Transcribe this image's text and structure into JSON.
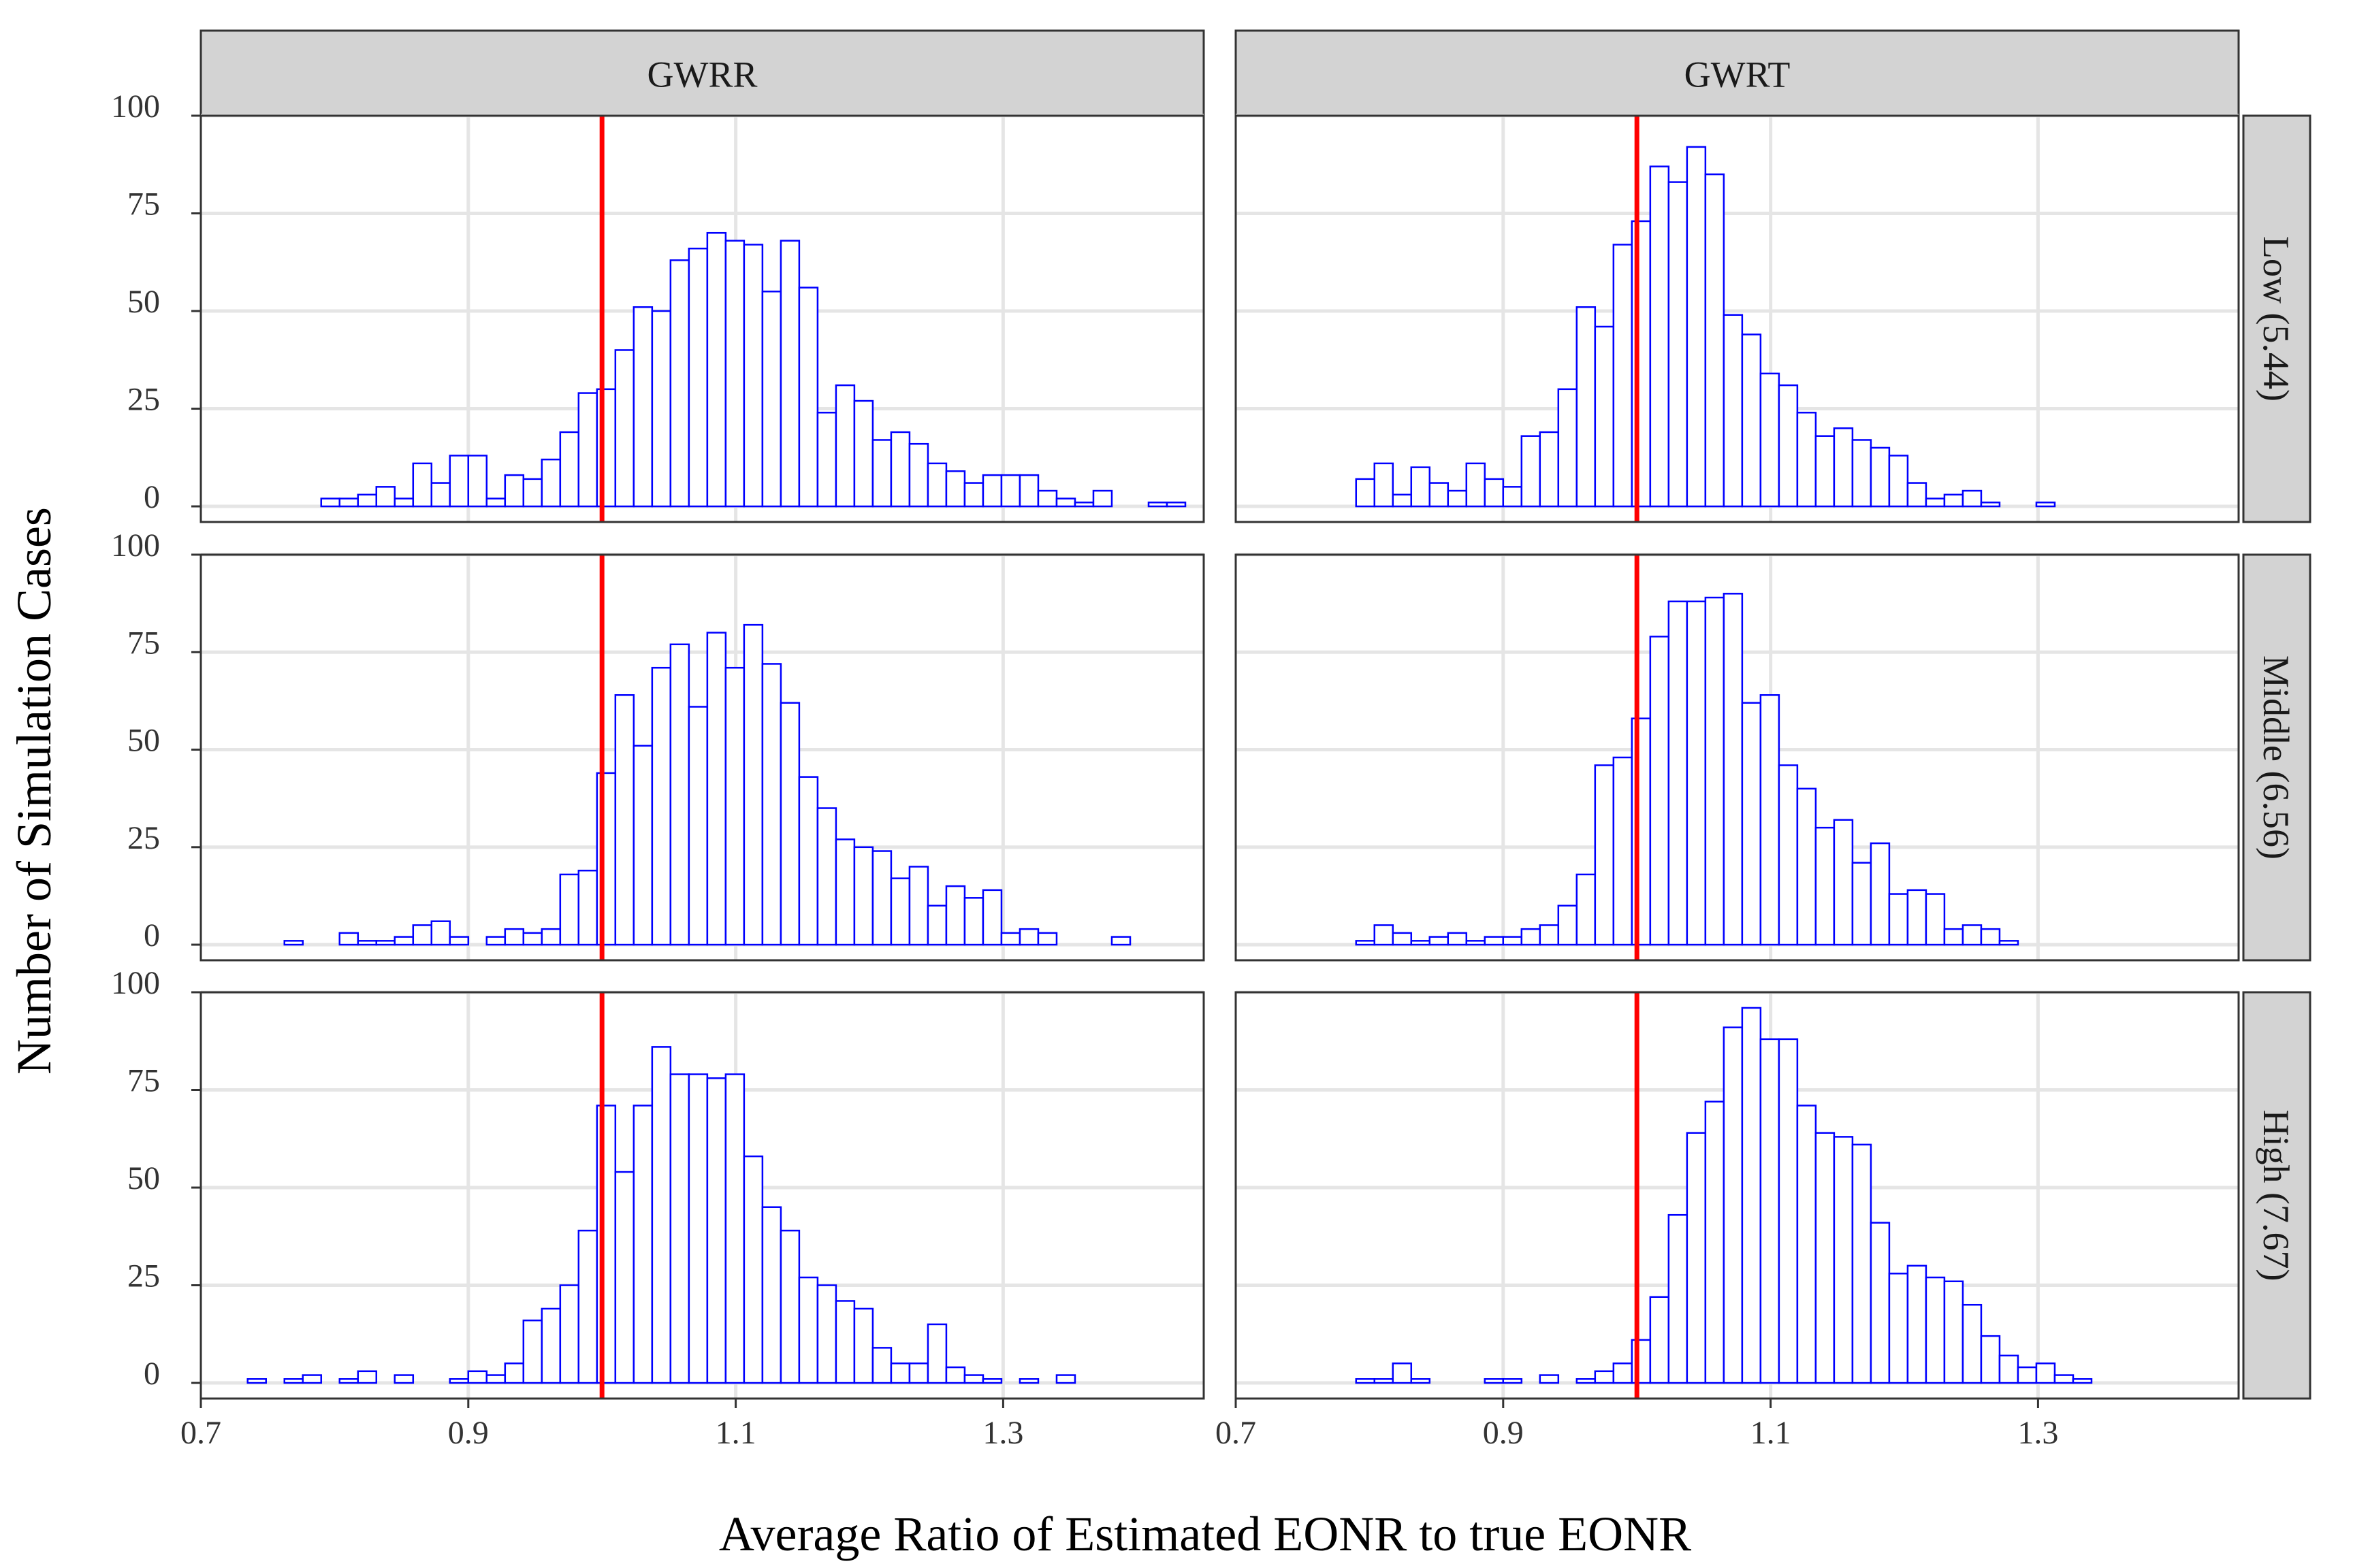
{
  "figure": {
    "ylabel": "Number of Simulation Cases",
    "xlabel": "Average Ratio of Estimated EONR to true EONR",
    "column_headers": [
      "GWRR",
      "GWRT"
    ],
    "row_headers": [
      "Low (5.44)",
      "Middle (6.56)",
      "High (7.67)"
    ],
    "colors": {
      "bar_stroke": "#0000ff",
      "reference_line": "#ff0000",
      "strip_fill": "#d3d3d3",
      "grid": "#e5e5e5",
      "frame": "#333333",
      "text": "#333333"
    }
  },
  "chart_data": {
    "type": "histogram",
    "x_axis": {
      "ticks": [
        "0.7",
        "0.9",
        "1.1",
        "1.3"
      ],
      "range": [
        0.7,
        1.45
      ]
    },
    "y_axis": {
      "ticks": [
        "0",
        "25",
        "50",
        "75",
        "100"
      ],
      "range": [
        -4,
        100
      ]
    },
    "reference_line_x": 1.0,
    "bin_start": 0.735,
    "bin_width": 0.01375,
    "grid": true,
    "panels": [
      {
        "column": "GWRR",
        "row": "Low (5.44)",
        "counts": [
          0,
          0,
          0,
          0,
          2,
          2,
          3,
          5,
          2,
          11,
          6,
          13,
          13,
          2,
          8,
          7,
          12,
          19,
          29,
          30,
          40,
          51,
          50,
          63,
          66,
          70,
          68,
          67,
          55,
          68,
          56,
          24,
          31,
          27,
          17,
          19,
          16,
          11,
          9,
          6,
          8,
          8,
          8,
          4,
          2,
          1,
          4,
          0,
          0,
          1,
          1
        ]
      },
      {
        "column": "GWRT",
        "row": "Low (5.44)",
        "counts": [
          0,
          0,
          0,
          0,
          7,
          11,
          3,
          10,
          6,
          4,
          11,
          7,
          5,
          18,
          19,
          30,
          51,
          46,
          67,
          73,
          87,
          83,
          92,
          85,
          49,
          44,
          34,
          31,
          24,
          18,
          20,
          17,
          15,
          13,
          6,
          2,
          3,
          4,
          1,
          0,
          0,
          1,
          0,
          0,
          0,
          0,
          0,
          0,
          0
        ]
      },
      {
        "column": "GWRR",
        "row": "Middle (6.56)",
        "counts": [
          0,
          0,
          1,
          0,
          0,
          3,
          1,
          1,
          2,
          5,
          6,
          2,
          0,
          2,
          4,
          3,
          4,
          18,
          19,
          44,
          64,
          51,
          71,
          77,
          61,
          80,
          71,
          82,
          72,
          62,
          43,
          35,
          27,
          25,
          24,
          17,
          20,
          10,
          15,
          12,
          14,
          3,
          4,
          3,
          0,
          0,
          0,
          2,
          0,
          0
        ]
      },
      {
        "column": "GWRT",
        "row": "Middle (6.56)",
        "counts": [
          0,
          0,
          0,
          0,
          1,
          5,
          3,
          1,
          2,
          3,
          1,
          2,
          2,
          4,
          5,
          10,
          18,
          46,
          48,
          58,
          79,
          88,
          88,
          89,
          90,
          62,
          64,
          46,
          40,
          30,
          32,
          21,
          26,
          13,
          14,
          13,
          4,
          5,
          4,
          1,
          0,
          0,
          0,
          0,
          0,
          0,
          0,
          0,
          0
        ]
      },
      {
        "column": "GWRR",
        "row": "High (7.67)",
        "counts": [
          1,
          0,
          1,
          2,
          0,
          1,
          3,
          0,
          2,
          0,
          0,
          1,
          3,
          2,
          5,
          16,
          19,
          25,
          39,
          71,
          54,
          71,
          86,
          79,
          79,
          78,
          79,
          58,
          45,
          39,
          27,
          25,
          21,
          19,
          9,
          5,
          5,
          15,
          4,
          2,
          1,
          0,
          1,
          0,
          2,
          0,
          0,
          0,
          0,
          0,
          0
        ]
      },
      {
        "column": "GWRT",
        "row": "High (7.67)",
        "counts": [
          0,
          0,
          0,
          0,
          1,
          1,
          5,
          1,
          0,
          0,
          0,
          1,
          1,
          0,
          2,
          0,
          1,
          3,
          5,
          11,
          22,
          43,
          64,
          72,
          91,
          96,
          88,
          88,
          71,
          64,
          63,
          61,
          41,
          28,
          30,
          27,
          26,
          20,
          12,
          7,
          4,
          5,
          2,
          1,
          0,
          0,
          0,
          0,
          0
        ]
      }
    ]
  }
}
